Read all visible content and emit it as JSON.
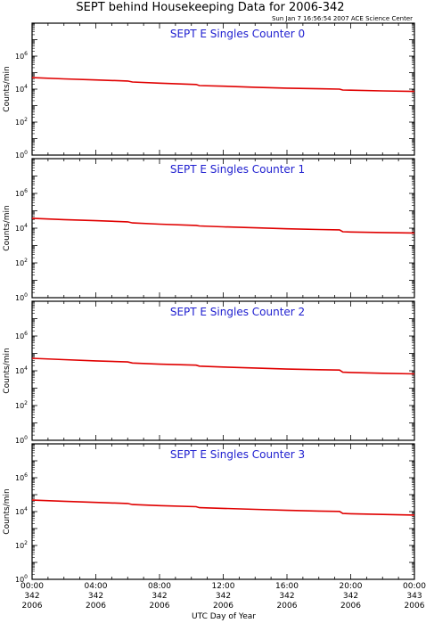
{
  "header": {
    "title": "SEPT behind Housekeeping Data for 2006-342",
    "timestamp": "Sun Jan  7 16:56:54 2007 ACE Science Center"
  },
  "colors": {
    "data": "#e00000",
    "panel_title": "#2020d0",
    "axes": "#000000"
  },
  "xaxis": {
    "title": "UTC Day of Year",
    "ticks": [
      {
        "time": "00:00",
        "doy": "342",
        "year": "2006"
      },
      {
        "time": "04:00",
        "doy": "342",
        "year": "2006"
      },
      {
        "time": "08:00",
        "doy": "342",
        "year": "2006"
      },
      {
        "time": "12:00",
        "doy": "342",
        "year": "2006"
      },
      {
        "time": "16:00",
        "doy": "342",
        "year": "2006"
      },
      {
        "time": "20:00",
        "doy": "342",
        "year": "2006"
      },
      {
        "time": "00:00",
        "doy": "343",
        "year": "2006"
      }
    ]
  },
  "chart_data": [
    {
      "type": "line",
      "title": "SEPT E Singles Counter 0",
      "ylabel": "Counts/min",
      "yscale": "log",
      "ylim": [
        1,
        100000000
      ],
      "xlim_hours": [
        0,
        24
      ],
      "yticks": [
        "10^0",
        "10^2",
        "10^4",
        "10^6"
      ],
      "series": [
        {
          "x": [
            0,
            2,
            4,
            6,
            6.3,
            8,
            10.3,
            10.5,
            12,
            14,
            16,
            18,
            19.3,
            19.5,
            20,
            22,
            24
          ],
          "y": [
            50000,
            42000,
            36000,
            31000,
            27000,
            23000,
            19000,
            16500,
            15000,
            13000,
            11500,
            10500,
            10000,
            8800,
            8600,
            7800,
            7200
          ]
        }
      ]
    },
    {
      "type": "line",
      "title": "SEPT E Singles Counter 1",
      "ylabel": "Counts/min",
      "yscale": "log",
      "ylim": [
        1,
        100000000
      ],
      "xlim_hours": [
        0,
        24
      ],
      "yticks": [
        "10^0",
        "10^2",
        "10^4",
        "10^6"
      ],
      "series": [
        {
          "x": [
            0,
            2,
            4,
            6,
            6.3,
            8,
            10.3,
            10.5,
            12,
            14,
            16,
            18,
            19.3,
            19.5,
            20,
            22,
            24
          ],
          "y": [
            37000,
            31000,
            27000,
            23000,
            20000,
            17000,
            14500,
            13500,
            12000,
            10500,
            9200,
            8400,
            8000,
            6200,
            6000,
            5600,
            5300
          ]
        }
      ]
    },
    {
      "type": "line",
      "title": "SEPT E Singles Counter 2",
      "ylabel": "Counts/min",
      "yscale": "log",
      "ylim": [
        1,
        100000000
      ],
      "xlim_hours": [
        0,
        24
      ],
      "yticks": [
        "10^0",
        "10^2",
        "10^4",
        "10^6"
      ],
      "series": [
        {
          "x": [
            0,
            2,
            4,
            6,
            6.3,
            8,
            10.3,
            10.5,
            12,
            14,
            16,
            18,
            19.3,
            19.5,
            20,
            22,
            24
          ],
          "y": [
            52000,
            44000,
            37000,
            32000,
            28000,
            24000,
            21000,
            18500,
            16500,
            14500,
            12500,
            11500,
            11000,
            8300,
            8000,
            7200,
            6600
          ]
        }
      ]
    },
    {
      "type": "line",
      "title": "SEPT E Singles Counter 3",
      "ylabel": "Counts/min",
      "yscale": "log",
      "ylim": [
        1,
        100000000
      ],
      "xlim_hours": [
        0,
        24
      ],
      "yticks": [
        "10^0",
        "10^2",
        "10^4",
        "10^6"
      ],
      "series": [
        {
          "x": [
            0,
            2,
            4,
            6,
            6.3,
            8,
            10.3,
            10.5,
            12,
            14,
            16,
            18,
            19.3,
            19.5,
            20,
            22,
            24
          ],
          "y": [
            48000,
            41000,
            35000,
            30000,
            26000,
            22500,
            19500,
            17000,
            15500,
            13500,
            11800,
            10800,
            10200,
            7800,
            7500,
            6800,
            6200
          ]
        }
      ]
    }
  ]
}
